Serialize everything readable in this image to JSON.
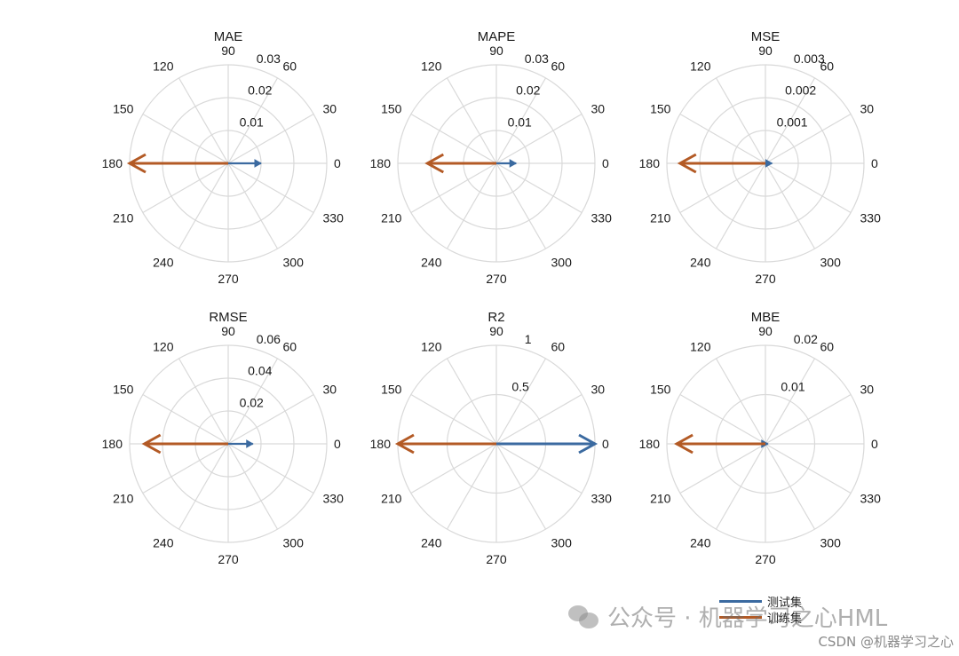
{
  "chart_data": [
    {
      "type": "polar",
      "title": "MAE",
      "r_ticks": [
        "0.01",
        "0.02",
        "0.03"
      ],
      "rmax": 0.03,
      "series": [
        {
          "name": "测试集",
          "angle": 0,
          "r": 0.01
        },
        {
          "name": "训练集",
          "angle": 180,
          "r": 0.03
        }
      ]
    },
    {
      "type": "polar",
      "title": "MAPE",
      "r_ticks": [
        "0.01",
        "0.02",
        "0.03"
      ],
      "rmax": 0.03,
      "series": [
        {
          "name": "测试集",
          "angle": 0,
          "r": 0.006
        },
        {
          "name": "训练集",
          "angle": 180,
          "r": 0.021
        }
      ]
    },
    {
      "type": "polar",
      "title": "MSE",
      "r_ticks": [
        "0.001",
        "0.002",
        "0.003"
      ],
      "rmax": 0.003,
      "series": [
        {
          "name": "测试集",
          "angle": 0,
          "r": 0.0002
        },
        {
          "name": "训练集",
          "angle": 180,
          "r": 0.0026
        }
      ]
    },
    {
      "type": "polar",
      "title": "RMSE",
      "r_ticks": [
        "0.02",
        "0.04",
        "0.06"
      ],
      "rmax": 0.06,
      "series": [
        {
          "name": "测试集",
          "angle": 0,
          "r": 0.015
        },
        {
          "name": "训练集",
          "angle": 180,
          "r": 0.051
        }
      ]
    },
    {
      "type": "polar",
      "title": "R2",
      "r_ticks": [
        "0.5",
        "1"
      ],
      "rmax": 1,
      "series": [
        {
          "name": "测试集",
          "angle": 0,
          "r": 1.0
        },
        {
          "name": "训练集",
          "angle": 180,
          "r": 1.0
        }
      ]
    },
    {
      "type": "polar",
      "title": "MBE",
      "r_ticks": [
        "0.01",
        "0.02"
      ],
      "rmax": 0.02,
      "series": [
        {
          "name": "测试集",
          "angle": 0,
          "r": 0.0005
        },
        {
          "name": "训练集",
          "angle": 180,
          "r": 0.018
        }
      ]
    }
  ],
  "angle_labels": [
    "0",
    "30",
    "60",
    "90",
    "120",
    "150",
    "180",
    "210",
    "240",
    "270",
    "300",
    "330"
  ],
  "legend": [
    {
      "label": "测试集",
      "color": "#3b6aa0"
    },
    {
      "label": "训练集",
      "color": "#b35a25"
    }
  ],
  "colors": {
    "grid": "#d9d9d9",
    "text": "#1a1a1a"
  },
  "watermark": {
    "text": "公众号 · 机器学习之心HML",
    "icon": "wechat-icon"
  },
  "credit": "CSDN @机器学习之心"
}
